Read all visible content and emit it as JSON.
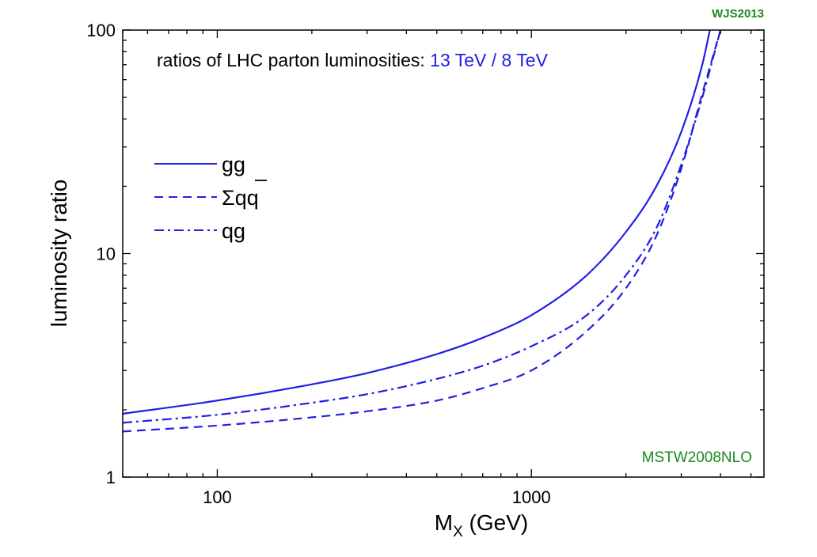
{
  "chart_data": {
    "type": "line",
    "title": "",
    "xlabel_main": "M",
    "xlabel_sub": "X",
    "xlabel_rest": " (GeV)",
    "ylabel": "luminosity ratio",
    "xscale": "log",
    "yscale": "log",
    "xlim": [
      50,
      5500
    ],
    "ylim": [
      1,
      100
    ],
    "x_ticks": [
      100,
      1000
    ],
    "x_tick_labels": [
      "100",
      "1000"
    ],
    "y_ticks": [
      1,
      10,
      100
    ],
    "y_tick_labels": [
      "1",
      "10",
      "100"
    ],
    "grid": false,
    "legend_placement": "upper-left",
    "annotation_black": "ratios of LHC parton luminosities: ",
    "annotation_blue": "13 TeV / 8 TeV",
    "annotation_top_right": "WJS2013",
    "annotation_bottom_right": "MSTW2008NLO",
    "colors": {
      "series": "#1f1fe6",
      "green": "#1a8a1a",
      "axis": "#000000"
    },
    "series": [
      {
        "name": "gg",
        "legend_label": "gg",
        "style": "solid",
        "x": [
          50,
          100,
          200,
          300,
          500,
          700,
          1000,
          1500,
          2000,
          2500,
          3000,
          3500,
          3700
        ],
        "y": [
          1.92,
          2.2,
          2.6,
          2.92,
          3.55,
          4.2,
          5.3,
          8.0,
          12.5,
          20.0,
          35.0,
          70.0,
          100.0
        ]
      },
      {
        "name": "qqbar",
        "legend_label_prefix": "Σq",
        "legend_label_overlined": "q",
        "style": "dashed",
        "x": [
          50,
          100,
          200,
          300,
          500,
          700,
          1000,
          1500,
          2000,
          2500,
          3000,
          3500,
          4000
        ],
        "y": [
          1.6,
          1.7,
          1.85,
          1.97,
          2.2,
          2.5,
          3.0,
          4.5,
          7.0,
          12.0,
          24.0,
          52.0,
          100.0
        ]
      },
      {
        "name": "qg",
        "legend_label": "qg",
        "style": "dash-dot",
        "x": [
          50,
          100,
          200,
          300,
          500,
          700,
          1000,
          1500,
          2000,
          2500,
          3000,
          3500,
          4000
        ],
        "y": [
          1.75,
          1.9,
          2.15,
          2.35,
          2.75,
          3.15,
          3.85,
          5.3,
          8.0,
          13.0,
          25.0,
          50.0,
          100.0
        ]
      }
    ]
  }
}
